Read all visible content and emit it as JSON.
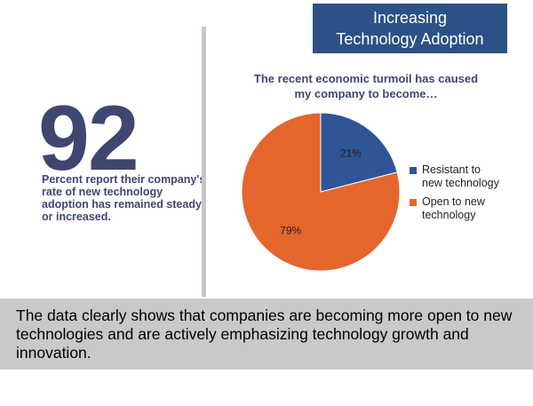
{
  "banner": {
    "line1": "Increasing",
    "line2": "Technology Adoption"
  },
  "stat": {
    "number": "92",
    "description": "Percent report their company's rate of new technology adoption has remained steady or increased."
  },
  "footer": {
    "text": "The data clearly shows that companies are becoming more open to new technologies and are actively emphasizing technology growth and innovation."
  },
  "colors": {
    "banner_bg": "#2c5187",
    "stat_text": "#3f4771",
    "footer_bg": "#c9c9c9"
  },
  "chart_data": {
    "type": "pie",
    "title_line1": "The recent economic turmoil has caused",
    "title_line2": "my company to become…",
    "legend_placement": "right",
    "slices": [
      {
        "name": "Resistant to new technology",
        "legend_line1": "Resistant to",
        "legend_line2": "new technology",
        "value": 21,
        "label": "21%",
        "color": "#2f5597"
      },
      {
        "name": "Open to new technology",
        "legend_line1": "Open to new",
        "legend_line2": "technology",
        "value": 79,
        "label": "79%",
        "color": "#e4662c"
      }
    ]
  }
}
